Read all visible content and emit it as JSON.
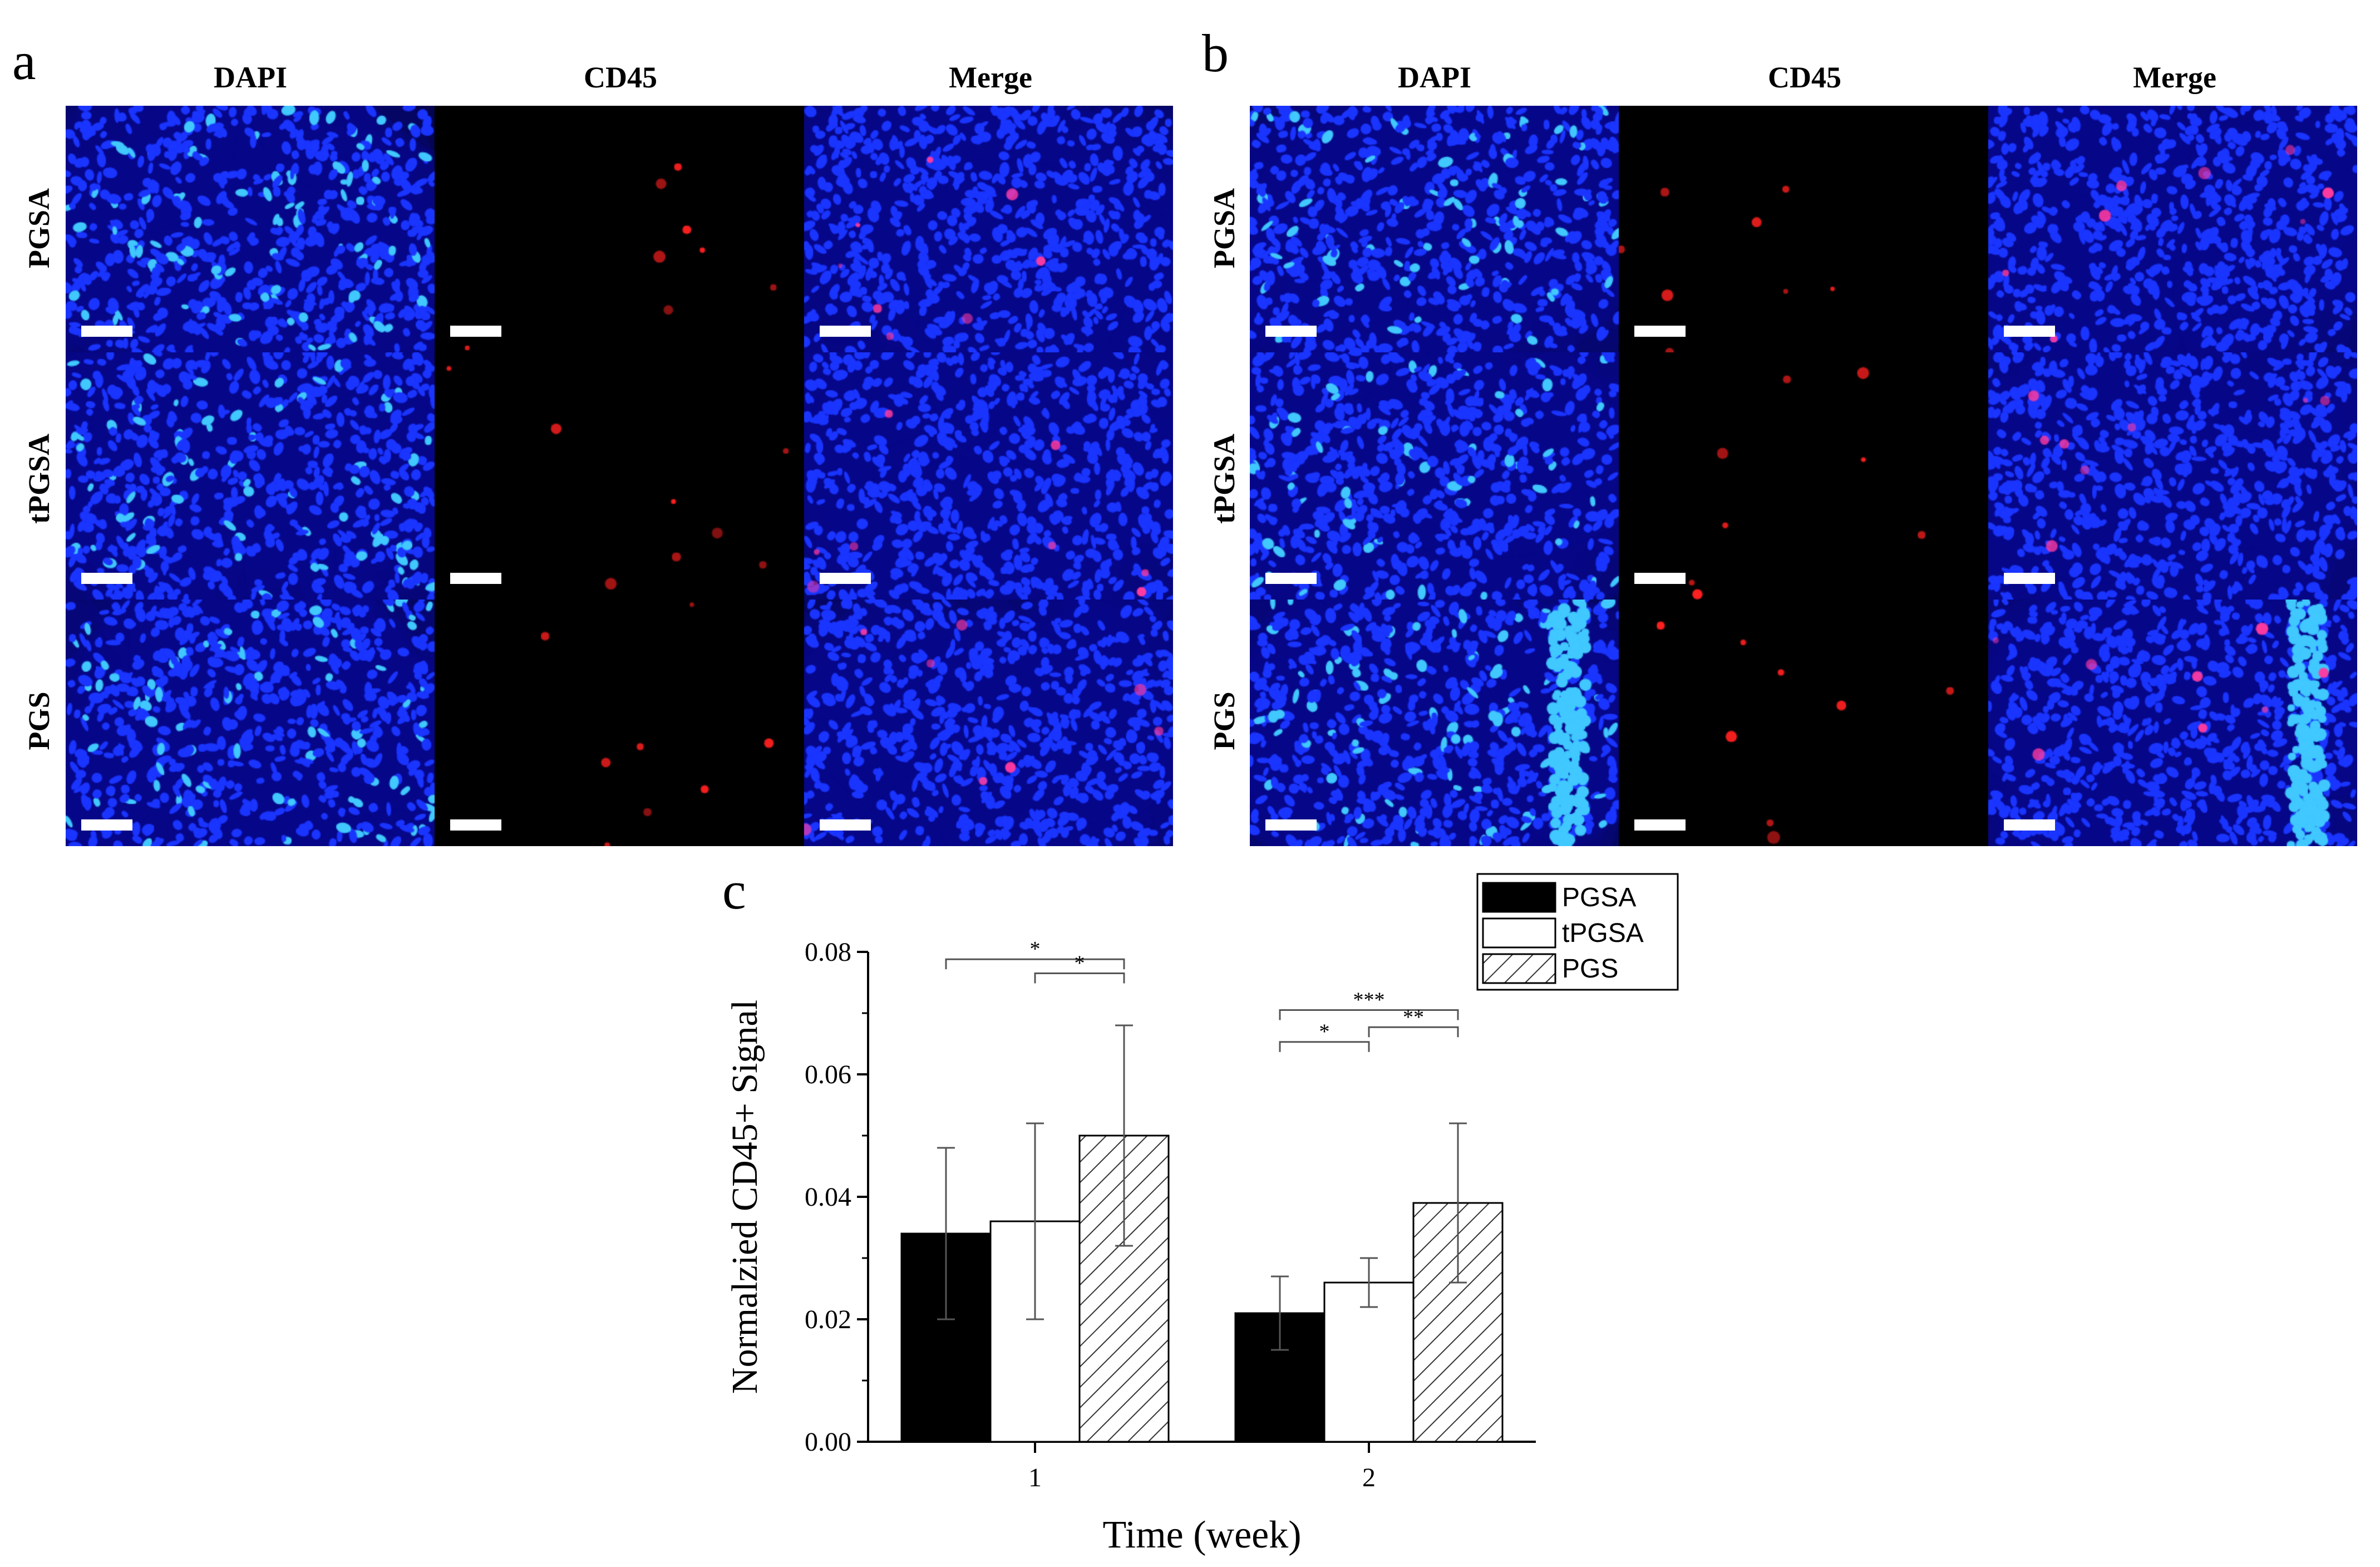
{
  "panels": {
    "a": {
      "letter": "a",
      "columns": [
        "DAPI",
        "CD45",
        "Merge"
      ],
      "rows": [
        "PGSA",
        "tPGSA",
        "PGS"
      ]
    },
    "b": {
      "letter": "b",
      "columns": [
        "DAPI",
        "CD45",
        "Merge"
      ],
      "rows": [
        "PGSA",
        "tPGSA",
        "PGS"
      ]
    }
  },
  "colors": {
    "dapi_background": "#0a0a8a",
    "dapi_cells": "#1a35ff",
    "dapi_bright": "#40c8ff",
    "cd45_cells": "#ff2020",
    "merge_cells": "#ff3aa0",
    "background": "#000000"
  },
  "chart_data": {
    "panel_letter": "c",
    "type": "bar",
    "categories": [
      "1",
      "2"
    ],
    "xlabel": "Time (week)",
    "ylabel": "Normalzied CD45+ Signal",
    "ylim": [
      0,
      0.08
    ],
    "yticks": [
      "0.00",
      "0.02",
      "0.04",
      "0.06",
      "0.08"
    ],
    "legend_position": "top-right",
    "series": [
      {
        "name": "PGSA",
        "fill": "solid-black",
        "values": [
          0.034,
          0.021
        ],
        "errors": [
          0.014,
          0.006
        ]
      },
      {
        "name": "tPGSA",
        "fill": "white",
        "values": [
          0.036,
          0.026
        ],
        "errors": [
          0.016,
          0.004
        ]
      },
      {
        "name": "PGS",
        "fill": "hatched",
        "values": [
          0.05,
          0.039
        ],
        "errors": [
          0.018,
          0.013
        ]
      }
    ],
    "significance": [
      {
        "category": 0,
        "from": 0,
        "to": 2,
        "label": "*"
      },
      {
        "category": 0,
        "from": 1,
        "to": 2,
        "label": "*"
      },
      {
        "category": 1,
        "from": 0,
        "to": 2,
        "label": "***"
      },
      {
        "category": 1,
        "from": 0,
        "to": 1,
        "label": "*"
      },
      {
        "category": 1,
        "from": 1,
        "to": 2,
        "label": "**"
      }
    ]
  }
}
